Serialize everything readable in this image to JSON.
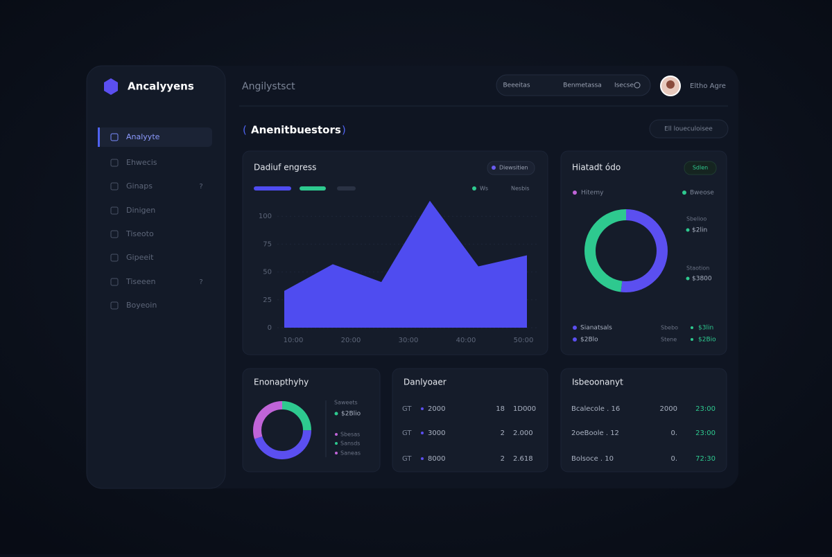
{
  "sidebar": {
    "brand": "Ancalyyens",
    "nav": [
      {
        "label": "Analyyte"
      },
      {
        "label": "Ehwecis"
      },
      {
        "label": "Ginaps",
        "badge": "?"
      },
      {
        "label": "Dinigen"
      },
      {
        "label": "Tiseoto"
      },
      {
        "label": "Gipeeit"
      },
      {
        "label": "Tiseeen",
        "badge": "?"
      },
      {
        "label": "Boyeoin"
      }
    ]
  },
  "header": {
    "title": "Angilystsct",
    "tabs": [
      "Beeeitas",
      "Benmetassa",
      "Isecse"
    ],
    "user": "Eltho Agre"
  },
  "page_title": "Anenitbuestors",
  "page_action": "Ell loueculoisee",
  "cards": [
    {
      "title": "Dadiuf engress",
      "badge": "Diewsitien",
      "legend": [
        "Ws",
        "Nesbis"
      ],
      "chart": {
        "type": "area",
        "color": "#4f4cf0",
        "values": [
          33,
          57,
          41,
          114,
          55,
          65
        ],
        "ylim": [
          0,
          125
        ],
        "yticks": [
          0,
          25,
          50,
          75,
          100
        ],
        "x_labels": [
          "10:00",
          "20:00",
          "30:00",
          "40:00",
          "50:00"
        ]
      }
    },
    {
      "title": "Hiatadt ódo",
      "badge": "Sdlen",
      "legend": [
        "Hitemy",
        "Bweose"
      ],
      "side": [
        [
          "Sbelioo",
          "$2lin"
        ],
        [
          "Staotion",
          "$3800"
        ]
      ],
      "rows": [
        [
          "Sianatsals",
          "Sbebo",
          "$3lin"
        ],
        [
          "$2Blo",
          "Stene",
          "$2Bio"
        ]
      ],
      "chart": {
        "type": "donut",
        "values": [
          52,
          48
        ],
        "colors": [
          "#5b4ff0",
          "#2ec98f"
        ]
      }
    },
    {
      "title": "Enonapthyhy",
      "legend_head": "Saweets",
      "legend_value": "$2Blio",
      "legend": [
        "Sbesas",
        "Sansds",
        "Saneas"
      ],
      "chart": {
        "type": "donut",
        "values": [
          25,
          45,
          30
        ],
        "colors": [
          "#2ec98f",
          "#5b4ff0",
          "#c064d8"
        ]
      }
    },
    {
      "title": "Danlyoaer",
      "rows": [
        [
          "GT",
          "2000",
          "18",
          "1D000"
        ],
        [
          "GT",
          "3000",
          "2",
          "2.000"
        ],
        [
          "GT",
          "8000",
          "2",
          "2.618"
        ]
      ]
    },
    {
      "title": "Isbeoonanyt",
      "rows": [
        [
          "Bcalecole . 16",
          "2000",
          "23:00"
        ],
        [
          "2oeBoole . 12",
          "0.",
          "23:00"
        ],
        [
          "Bolsoce . 10",
          "0.",
          "72:30"
        ]
      ]
    }
  ]
}
